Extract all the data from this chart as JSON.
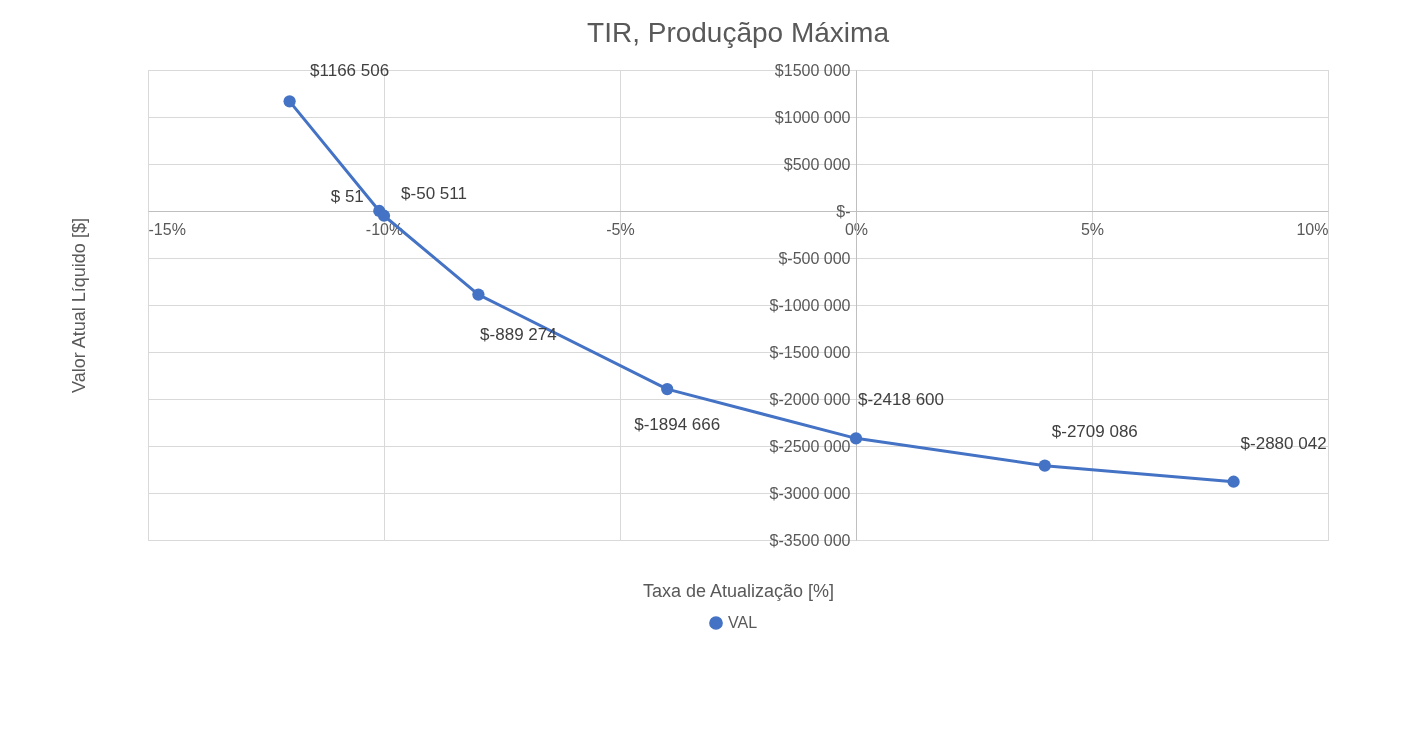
{
  "chart_data": {
    "type": "line",
    "title": "TIR, Produçãpo Máxima",
    "xlabel": "Taxa de Atualização [%]",
    "ylabel": "Valor Atual Líquido [$]",
    "x": [
      -12,
      -10.1,
      -10,
      -8,
      -4,
      0,
      4,
      8
    ],
    "series": [
      {
        "name": "VAL",
        "color": "#4472c4",
        "values": [
          1166506,
          51,
          -50511,
          -889274,
          -1894666,
          -2418600,
          -2709086,
          -2880042
        ],
        "value_labels": [
          "$1166 506",
          "$ 51",
          "$-50 511",
          "$-889 274",
          "$-1894 666",
          "$-2418 600",
          "$-2709 086",
          "$-2880 042"
        ]
      }
    ],
    "xlim": [
      -15,
      10
    ],
    "xticks": [
      {
        "value": -15,
        "label": "-15%"
      },
      {
        "value": -10,
        "label": "-10%"
      },
      {
        "value": -5,
        "label": "-5%"
      },
      {
        "value": 0,
        "label": "0%"
      },
      {
        "value": 5,
        "label": "5%"
      },
      {
        "value": 10,
        "label": "10%"
      }
    ],
    "ylim": [
      -3500000,
      1500000
    ],
    "yticks": [
      {
        "value": -3500000,
        "label": "$-3500 000"
      },
      {
        "value": -3000000,
        "label": "$-3000 000"
      },
      {
        "value": -2500000,
        "label": "$-2500 000"
      },
      {
        "value": -2000000,
        "label": "$-2000 000"
      },
      {
        "value": -1500000,
        "label": "$-1500 000"
      },
      {
        "value": -1000000,
        "label": "$-1000 000"
      },
      {
        "value": -500000,
        "label": "$-500 000"
      },
      {
        "value": 0,
        "label": "$-"
      },
      {
        "value": 500000,
        "label": "$500 000"
      },
      {
        "value": 1000000,
        "label": "$1000 000"
      },
      {
        "value": 1500000,
        "label": "$1500 000"
      }
    ],
    "grid": true,
    "legend": "bottom",
    "marker": "circle",
    "line_style": "solid"
  }
}
